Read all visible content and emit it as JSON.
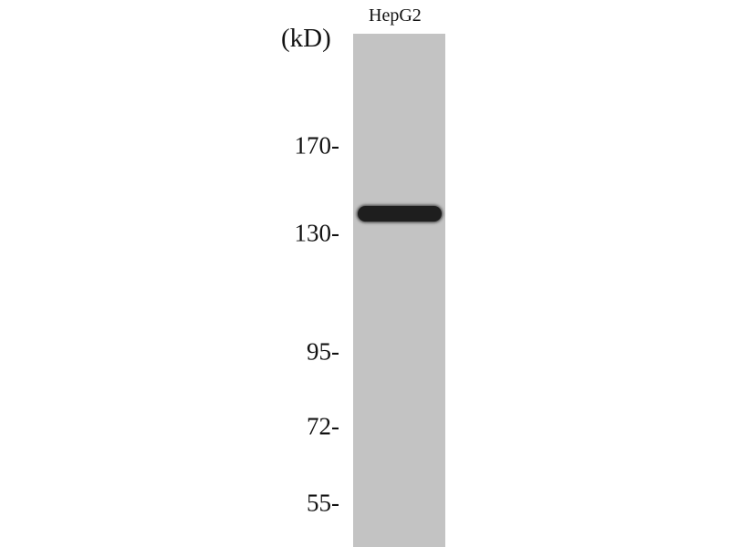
{
  "lane_labels": [
    "HepG2"
  ],
  "unit_label": "(kD)",
  "markers": [
    {
      "label": "170-",
      "kd": 170
    },
    {
      "label": "130-",
      "kd": 130
    },
    {
      "label": "95-",
      "kd": 95
    },
    {
      "label": "72-",
      "kd": 72
    },
    {
      "label": "55-",
      "kd": 55
    }
  ],
  "bands": [
    {
      "lane": "HepG2",
      "approx_kd": 140
    }
  ],
  "colors": {
    "lane": "#c3c3c3",
    "band": "#1e1e1e"
  }
}
